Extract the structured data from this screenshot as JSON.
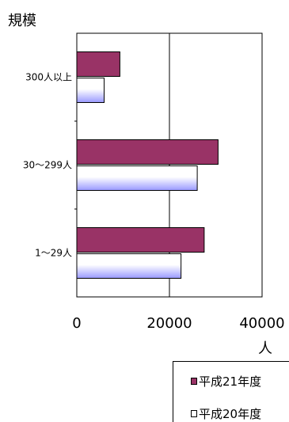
{
  "chart_data": {
    "type": "bar",
    "orientation": "horizontal",
    "title": "規模",
    "xunit": "人",
    "categories": [
      "300人以上",
      "30～299人",
      "1～29人"
    ],
    "series": [
      {
        "name": "平成21年度",
        "values": [
          9300,
          30500,
          27500
        ],
        "color": "#993366"
      },
      {
        "name": "平成20年度",
        "values": [
          5900,
          26000,
          22500
        ],
        "color": "#ffffff",
        "gradient_to": "#9999ff"
      }
    ],
    "xlim": [
      0,
      40000
    ],
    "xticks": [
      "0",
      "20000",
      "40000"
    ],
    "grid": true,
    "legend_position": "bottom-right"
  }
}
